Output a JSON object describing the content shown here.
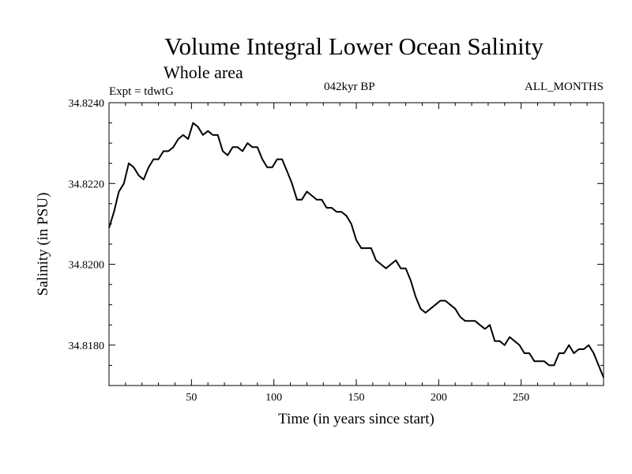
{
  "chart_data": {
    "type": "line",
    "title": "Volume Integral Lower Ocean Salinity",
    "subtitle": "Whole area",
    "experiment_label": "Expt = tdwtG",
    "period_label": "042kyr BP",
    "months_label": "ALL_MONTHS",
    "xlabel": "Time (in years since start)",
    "ylabel": "Salinity (in PSU)",
    "xlim": [
      0,
      300
    ],
    "ylim": [
      34.817,
      34.824
    ],
    "xticks": [
      50,
      100,
      150,
      200,
      250
    ],
    "yticks": [
      34.818,
      34.82,
      34.822,
      34.824
    ],
    "ytick_labels": [
      "34.8180",
      "34.8200",
      "34.8220",
      "34.8240"
    ],
    "series": [
      {
        "name": "Salinity",
        "x": [
          0,
          3,
          6,
          9,
          12,
          15,
          18,
          21,
          24,
          27,
          30,
          33,
          36,
          39,
          42,
          45,
          48,
          51,
          54,
          57,
          60,
          63,
          66,
          69,
          72,
          75,
          78,
          81,
          84,
          87,
          90,
          93,
          96,
          99,
          102,
          105,
          108,
          111,
          114,
          117,
          120,
          123,
          126,
          129,
          132,
          135,
          138,
          141,
          144,
          147,
          150,
          153,
          156,
          159,
          162,
          165,
          168,
          171,
          174,
          177,
          180,
          183,
          186,
          189,
          192,
          195,
          198,
          201,
          204,
          207,
          210,
          213,
          216,
          219,
          222,
          225,
          228,
          231,
          234,
          237,
          240,
          243,
          246,
          249,
          252,
          255,
          258,
          261,
          264,
          267,
          270,
          273,
          276,
          279,
          282,
          285,
          288,
          291,
          294,
          297,
          300
        ],
        "values": [
          34.8209,
          34.8213,
          34.8218,
          34.822,
          34.8225,
          34.8224,
          34.8222,
          34.8221,
          34.8224,
          34.8226,
          34.8226,
          34.8228,
          34.8228,
          34.8229,
          34.8231,
          34.8232,
          34.8231,
          34.8235,
          34.8234,
          34.8232,
          34.8233,
          34.8232,
          34.8232,
          34.8228,
          34.8227,
          34.8229,
          34.8229,
          34.8228,
          34.823,
          34.8229,
          34.8229,
          34.8226,
          34.8224,
          34.8224,
          34.8226,
          34.8226,
          34.8223,
          34.822,
          34.8216,
          34.8216,
          34.8218,
          34.8217,
          34.8216,
          34.8216,
          34.8214,
          34.8214,
          34.8213,
          34.8213,
          34.8212,
          34.821,
          34.8206,
          34.8204,
          34.8204,
          34.8204,
          34.8201,
          34.82,
          34.8199,
          34.82,
          34.8201,
          34.8199,
          34.8199,
          34.8196,
          34.8192,
          34.8189,
          34.8188,
          34.8189,
          34.819,
          34.8191,
          34.8191,
          34.819,
          34.8189,
          34.8187,
          34.8186,
          34.8186,
          34.8186,
          34.8185,
          34.8184,
          34.8185,
          34.8181,
          34.8181,
          34.818,
          34.8182,
          34.8181,
          34.818,
          34.8178,
          34.8178,
          34.8176,
          34.8176,
          34.8176,
          34.8175,
          34.8175,
          34.8178,
          34.8178,
          34.818,
          34.8178,
          34.8179,
          34.8179,
          34.818,
          34.8178,
          34.8175,
          34.8172
        ]
      }
    ]
  }
}
